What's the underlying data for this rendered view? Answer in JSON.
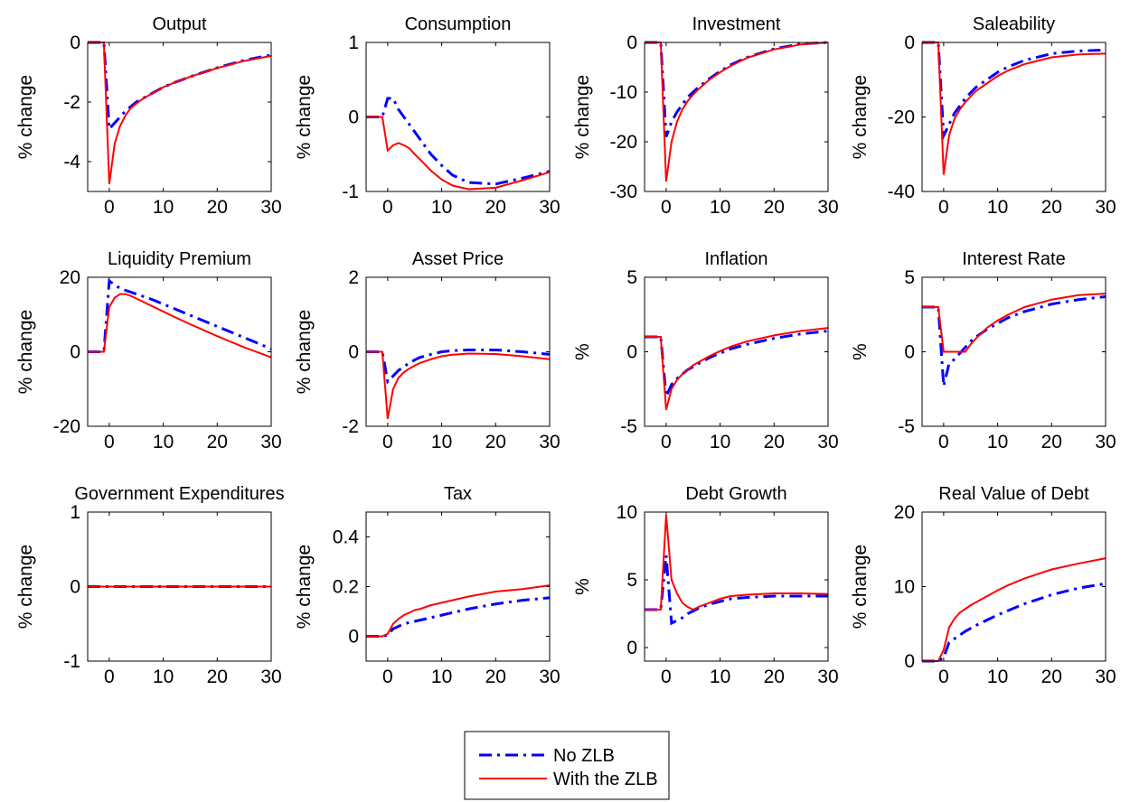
{
  "chart_data": [
    {
      "type": "line",
      "title": "Output",
      "ylabel": "% change",
      "x": [
        -4,
        -1,
        0,
        1,
        2,
        3,
        4,
        5,
        6,
        8,
        10,
        12,
        15,
        20,
        25,
        30
      ],
      "xlim": [
        -4,
        30
      ],
      "xticks": [
        0,
        10,
        20,
        30
      ],
      "ylim": [
        -5,
        0
      ],
      "yticks": [
        -4,
        -2,
        0
      ],
      "series": [
        {
          "name": "No ZLB",
          "color": "#0000ff",
          "linestyle": "dashdot",
          "values": [
            0,
            0,
            -2.9,
            -2.7,
            -2.5,
            -2.3,
            -2.15,
            -2.0,
            -1.9,
            -1.7,
            -1.5,
            -1.35,
            -1.15,
            -0.85,
            -0.6,
            -0.42
          ]
        },
        {
          "name": "With the ZLB",
          "color": "#ff0000",
          "linestyle": "solid",
          "values": [
            0,
            0,
            -4.75,
            -3.4,
            -2.8,
            -2.45,
            -2.2,
            -2.05,
            -1.92,
            -1.7,
            -1.5,
            -1.35,
            -1.15,
            -0.86,
            -0.62,
            -0.45
          ]
        }
      ]
    },
    {
      "type": "line",
      "title": "Consumption",
      "ylabel": "% change",
      "x": [
        -4,
        -1,
        0,
        1,
        2,
        3,
        4,
        5,
        6,
        8,
        10,
        12,
        15,
        20,
        25,
        30
      ],
      "xlim": [
        -4,
        30
      ],
      "xticks": [
        0,
        10,
        20,
        30
      ],
      "ylim": [
        -1,
        1
      ],
      "yticks": [
        -1,
        0,
        1
      ],
      "series": [
        {
          "name": "No ZLB",
          "color": "#0000ff",
          "linestyle": "dashdot",
          "values": [
            0,
            0,
            0.25,
            0.25,
            0.1,
            0.0,
            -0.1,
            -0.2,
            -0.3,
            -0.5,
            -0.65,
            -0.78,
            -0.88,
            -0.9,
            -0.82,
            -0.73
          ]
        },
        {
          "name": "With the ZLB",
          "color": "#ff0000",
          "linestyle": "solid",
          "values": [
            0,
            0,
            -0.45,
            -0.38,
            -0.35,
            -0.38,
            -0.42,
            -0.5,
            -0.57,
            -0.72,
            -0.84,
            -0.92,
            -0.97,
            -0.95,
            -0.85,
            -0.74
          ]
        }
      ]
    },
    {
      "type": "line",
      "title": "Investment",
      "ylabel": "% change",
      "x": [
        -4,
        -1,
        0,
        1,
        2,
        3,
        4,
        5,
        6,
        8,
        10,
        12,
        15,
        20,
        25,
        30
      ],
      "xlim": [
        -4,
        30
      ],
      "xticks": [
        0,
        10,
        20,
        30
      ],
      "ylim": [
        -30,
        0
      ],
      "yticks": [
        -30,
        -20,
        -10,
        0
      ],
      "series": [
        {
          "name": "No ZLB",
          "color": "#0000ff",
          "linestyle": "dashdot",
          "values": [
            0,
            0,
            -19,
            -16,
            -14,
            -12.5,
            -11,
            -10,
            -9,
            -7.3,
            -5.8,
            -4.5,
            -3,
            -1.3,
            -0.3,
            0
          ]
        },
        {
          "name": "With the ZLB",
          "color": "#ff0000",
          "linestyle": "solid",
          "values": [
            0,
            0,
            -28,
            -20,
            -16,
            -13.5,
            -11.8,
            -10.5,
            -9.4,
            -7.5,
            -6,
            -4.7,
            -3.1,
            -1.4,
            -0.4,
            0
          ]
        }
      ]
    },
    {
      "type": "line",
      "title": "Saleability",
      "ylabel": "% change",
      "x": [
        -4,
        -1,
        0,
        1,
        2,
        3,
        4,
        5,
        6,
        8,
        10,
        12,
        15,
        20,
        25,
        30
      ],
      "xlim": [
        -4,
        30
      ],
      "xticks": [
        0,
        10,
        20,
        30
      ],
      "ylim": [
        -40,
        0
      ],
      "yticks": [
        -40,
        -20,
        0
      ],
      "series": [
        {
          "name": "No ZLB",
          "color": "#0000ff",
          "linestyle": "dashdot",
          "values": [
            0,
            0,
            -25,
            -22,
            -19,
            -17,
            -15,
            -13.5,
            -12,
            -10,
            -8,
            -6.5,
            -4.8,
            -3,
            -2.3,
            -2
          ]
        },
        {
          "name": "With the ZLB",
          "color": "#ff0000",
          "linestyle": "solid",
          "values": [
            0,
            0,
            -35.5,
            -25,
            -20.5,
            -18,
            -16,
            -14.5,
            -13,
            -11,
            -9,
            -7.5,
            -5.8,
            -4,
            -3.2,
            -3
          ]
        }
      ]
    },
    {
      "type": "line",
      "title": "Liquidity Premium",
      "ylabel": "% change",
      "x": [
        -4,
        -1,
        0,
        1,
        2,
        3,
        4,
        5,
        6,
        8,
        10,
        12,
        15,
        20,
        25,
        30
      ],
      "xlim": [
        -4,
        30
      ],
      "xticks": [
        0,
        10,
        20,
        30
      ],
      "ylim": [
        -20,
        20
      ],
      "yticks": [
        -20,
        0,
        20
      ],
      "series": [
        {
          "name": "No ZLB",
          "color": "#0000ff",
          "linestyle": "dashdot",
          "values": [
            0,
            0,
            19,
            18,
            17,
            16.5,
            16,
            15.5,
            15,
            14,
            12.8,
            11.6,
            9.8,
            6.8,
            3.8,
            0.8
          ]
        },
        {
          "name": "With the ZLB",
          "color": "#ff0000",
          "linestyle": "solid",
          "values": [
            0,
            0,
            12,
            14.5,
            15.5,
            15.5,
            15,
            14.3,
            13.6,
            12.2,
            10.8,
            9.4,
            7.4,
            4.2,
            1.2,
            -1.5
          ]
        }
      ]
    },
    {
      "type": "line",
      "title": "Asset Price",
      "ylabel": "% change",
      "x": [
        -4,
        -1,
        0,
        1,
        2,
        3,
        4,
        5,
        6,
        8,
        10,
        12,
        15,
        20,
        25,
        30
      ],
      "xlim": [
        -4,
        30
      ],
      "xticks": [
        0,
        10,
        20,
        30
      ],
      "ylim": [
        -2,
        2
      ],
      "yticks": [
        -2,
        0,
        2
      ],
      "series": [
        {
          "name": "No ZLB",
          "color": "#0000ff",
          "linestyle": "dashdot",
          "values": [
            0,
            0,
            -0.8,
            -0.65,
            -0.5,
            -0.4,
            -0.3,
            -0.22,
            -0.15,
            -0.07,
            0,
            0.03,
            0.05,
            0.05,
            0,
            -0.07
          ]
        },
        {
          "name": "With the ZLB",
          "color": "#ff0000",
          "linestyle": "solid",
          "values": [
            0,
            0,
            -1.8,
            -1.0,
            -0.7,
            -0.55,
            -0.45,
            -0.37,
            -0.3,
            -0.2,
            -0.12,
            -0.08,
            -0.05,
            -0.06,
            -0.12,
            -0.2
          ]
        }
      ]
    },
    {
      "type": "line",
      "title": "Inflation",
      "ylabel": "%",
      "x": [
        -4,
        -1,
        0,
        1,
        2,
        3,
        4,
        5,
        6,
        8,
        10,
        12,
        15,
        20,
        25,
        30
      ],
      "xlim": [
        -4,
        30
      ],
      "xticks": [
        0,
        10,
        20,
        30
      ],
      "ylim": [
        -5,
        5
      ],
      "yticks": [
        -5,
        0,
        5
      ],
      "series": [
        {
          "name": "No ZLB",
          "color": "#0000ff",
          "linestyle": "dashdot",
          "values": [
            1,
            1,
            -3,
            -2.2,
            -1.8,
            -1.5,
            -1.2,
            -1.0,
            -0.8,
            -0.4,
            -0.1,
            0.2,
            0.5,
            0.9,
            1.2,
            1.4
          ]
        },
        {
          "name": "With the ZLB",
          "color": "#ff0000",
          "linestyle": "solid",
          "values": [
            1,
            1,
            -3.9,
            -2.5,
            -1.9,
            -1.5,
            -1.2,
            -0.9,
            -0.7,
            -0.3,
            0.05,
            0.35,
            0.7,
            1.1,
            1.4,
            1.6
          ]
        }
      ]
    },
    {
      "type": "line",
      "title": "Interest Rate",
      "ylabel": "%",
      "x": [
        -4,
        -1,
        0,
        1,
        2,
        3,
        4,
        5,
        6,
        8,
        10,
        12,
        15,
        20,
        25,
        30
      ],
      "xlim": [
        -4,
        30
      ],
      "xticks": [
        0,
        10,
        20,
        30
      ],
      "ylim": [
        -5,
        5
      ],
      "yticks": [
        -5,
        0,
        5
      ],
      "series": [
        {
          "name": "No ZLB",
          "color": "#0000ff",
          "linestyle": "dashdot",
          "values": [
            3,
            3,
            -2.3,
            -0.8,
            -0.5,
            -0.1,
            0.3,
            0.7,
            1.0,
            1.5,
            1.9,
            2.3,
            2.7,
            3.2,
            3.5,
            3.7
          ]
        },
        {
          "name": "With the ZLB",
          "color": "#ff0000",
          "linestyle": "solid",
          "values": [
            3,
            3,
            0,
            0,
            0,
            0,
            0,
            0.5,
            0.9,
            1.6,
            2.1,
            2.5,
            3.0,
            3.5,
            3.8,
            3.9
          ]
        }
      ]
    },
    {
      "type": "line",
      "title": "Government Expenditures",
      "ylabel": "% change",
      "x": [
        -4,
        -1,
        0,
        1,
        2,
        3,
        4,
        5,
        6,
        8,
        10,
        12,
        15,
        20,
        25,
        30
      ],
      "xlim": [
        -4,
        30
      ],
      "xticks": [
        0,
        10,
        20,
        30
      ],
      "ylim": [
        -1,
        1
      ],
      "yticks": [
        -1,
        0,
        1
      ],
      "series": [
        {
          "name": "No ZLB",
          "color": "#0000ff",
          "linestyle": "dashdot",
          "values": [
            0,
            0,
            0,
            0,
            0,
            0,
            0,
            0,
            0,
            0,
            0,
            0,
            0,
            0,
            0,
            0
          ]
        },
        {
          "name": "With the ZLB",
          "color": "#ff0000",
          "linestyle": "solid",
          "values": [
            0,
            0,
            0,
            0,
            0,
            0,
            0,
            0,
            0,
            0,
            0,
            0,
            0,
            0,
            0,
            0
          ]
        }
      ]
    },
    {
      "type": "line",
      "title": "Tax",
      "ylabel": "% change",
      "x": [
        -4,
        -1,
        0,
        1,
        2,
        3,
        4,
        5,
        6,
        8,
        10,
        12,
        15,
        20,
        25,
        30
      ],
      "xlim": [
        -4,
        30
      ],
      "xticks": [
        0,
        10,
        20,
        30
      ],
      "ylim": [
        -0.1,
        0.5
      ],
      "yticks": [
        0,
        0.2,
        0.4
      ],
      "series": [
        {
          "name": "No ZLB",
          "color": "#0000ff",
          "linestyle": "dashdot",
          "values": [
            0,
            0,
            0.005,
            0.03,
            0.04,
            0.05,
            0.055,
            0.06,
            0.065,
            0.075,
            0.085,
            0.095,
            0.11,
            0.13,
            0.145,
            0.155
          ]
        },
        {
          "name": "With the ZLB",
          "color": "#ff0000",
          "linestyle": "solid",
          "values": [
            0,
            0,
            0.01,
            0.05,
            0.07,
            0.085,
            0.095,
            0.105,
            0.11,
            0.125,
            0.135,
            0.145,
            0.16,
            0.18,
            0.19,
            0.205
          ]
        }
      ]
    },
    {
      "type": "line",
      "title": "Debt Growth",
      "ylabel": "%",
      "x": [
        -4,
        -1,
        0,
        1,
        2,
        3,
        4,
        5,
        6,
        8,
        10,
        12,
        15,
        20,
        25,
        30
      ],
      "xlim": [
        -4,
        30
      ],
      "xticks": [
        0,
        10,
        20,
        30
      ],
      "ylim": [
        -1,
        10
      ],
      "yticks": [
        0,
        5,
        10
      ],
      "series": [
        {
          "name": "No ZLB",
          "color": "#0000ff",
          "linestyle": "dashdot",
          "values": [
            2.8,
            2.8,
            6.8,
            1.8,
            2.0,
            2.2,
            2.5,
            2.7,
            2.9,
            3.2,
            3.4,
            3.6,
            3.7,
            3.8,
            3.8,
            3.8
          ]
        },
        {
          "name": "With the ZLB",
          "color": "#ff0000",
          "linestyle": "solid",
          "values": [
            2.8,
            2.8,
            9.8,
            5,
            4,
            3.3,
            3.0,
            2.8,
            3.0,
            3.3,
            3.6,
            3.8,
            3.9,
            4.0,
            4.0,
            3.95
          ]
        }
      ]
    },
    {
      "type": "line",
      "title": "Real Value of Debt",
      "ylabel": "% change",
      "x": [
        -4,
        -1,
        0,
        1,
        2,
        3,
        4,
        5,
        6,
        8,
        10,
        12,
        15,
        20,
        25,
        30
      ],
      "xlim": [
        -4,
        30
      ],
      "xticks": [
        0,
        10,
        20,
        30
      ],
      "ylim": [
        0,
        20
      ],
      "yticks": [
        0,
        10,
        20
      ],
      "series": [
        {
          "name": "No ZLB",
          "color": "#0000ff",
          "linestyle": "dashdot",
          "values": [
            0,
            0,
            0.5,
            2.5,
            3.0,
            3.5,
            4.0,
            4.4,
            4.8,
            5.5,
            6.2,
            6.8,
            7.7,
            8.9,
            9.8,
            10.4
          ]
        },
        {
          "name": "With the ZLB",
          "color": "#ff0000",
          "linestyle": "solid",
          "values": [
            0,
            0,
            1.5,
            4.5,
            5.7,
            6.5,
            7.0,
            7.5,
            7.9,
            8.7,
            9.5,
            10.2,
            11.1,
            12.3,
            13.1,
            13.8
          ]
        }
      ]
    }
  ]
}
